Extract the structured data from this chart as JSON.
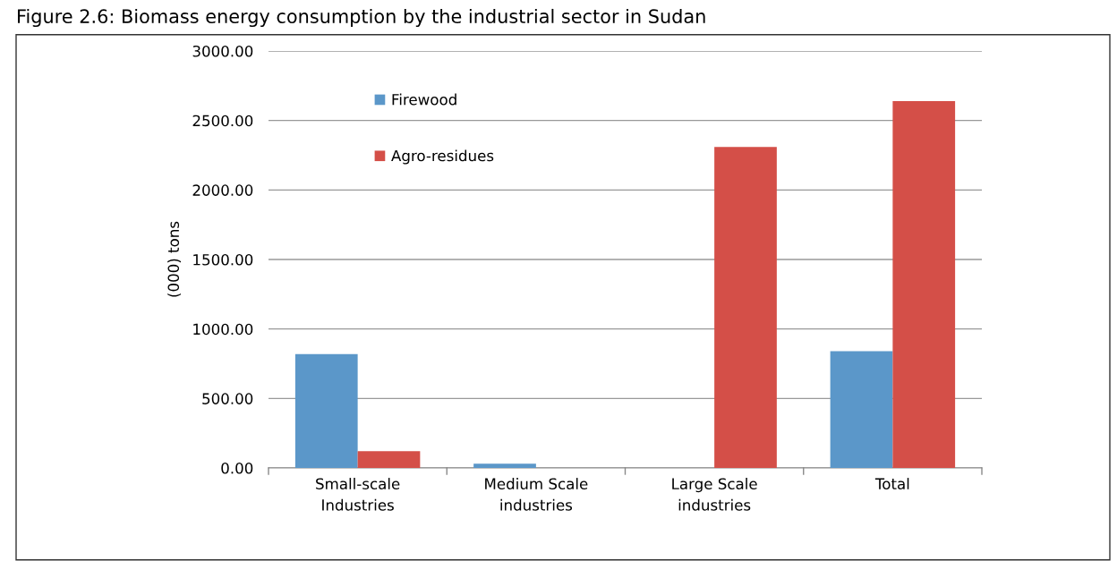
{
  "chart_data": {
    "type": "bar",
    "title": "Figure 2.6: Biomass energy consumption by the industrial sector in Sudan",
    "ylabel": "(000) tons",
    "categories": [
      "Small-scale\nIndustries",
      "Medium Scale\nindustries",
      "Large Scale\nindustries",
      "Total"
    ],
    "series": [
      {
        "name": "Firewood",
        "color": "#5b97c9",
        "values": [
          820,
          30,
          0,
          840
        ]
      },
      {
        "name": "Agro-residues",
        "color": "#d44f48",
        "values": [
          120,
          0,
          2310,
          2640
        ]
      }
    ],
    "ylim": [
      0,
      3000
    ],
    "yticks": [
      {
        "value": 0,
        "label": "0.00"
      },
      {
        "value": 500,
        "label": "500.00"
      },
      {
        "value": 1000,
        "label": "1000.00"
      },
      {
        "value": 1500,
        "label": "1500.00"
      },
      {
        "value": 2000,
        "label": "2000.00"
      },
      {
        "value": 2500,
        "label": "2500.00"
      },
      {
        "value": 3000,
        "label": "3000.00"
      }
    ],
    "grid": "y",
    "legend": "top left"
  }
}
